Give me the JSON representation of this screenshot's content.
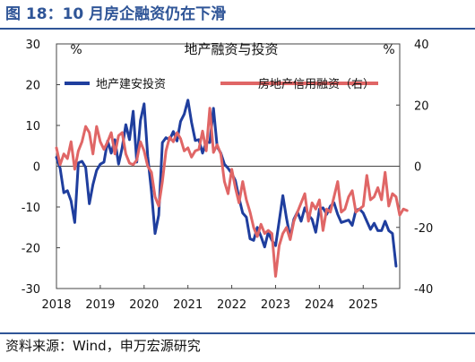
{
  "figure": {
    "title": "图 18：10 月房企融资仍在下滑",
    "source": "资料来源：Wind，申万宏源研究"
  },
  "colors": {
    "header": "#2f5597",
    "series_left": "#1f3e9e",
    "series_right": "#e06666"
  },
  "chart_data": {
    "type": "line",
    "title": "地产融资与投资",
    "left_axis": {
      "unit": "%",
      "ylim": [
        -30,
        30
      ],
      "ticks": [
        "30",
        "20",
        "10",
        "0",
        "-10",
        "-20",
        "-30"
      ]
    },
    "right_axis": {
      "unit": "%",
      "ylim": [
        -40,
        40
      ],
      "ticks": [
        "40",
        "20",
        "0",
        "-20",
        "-40"
      ]
    },
    "x_axis": {
      "xlim": [
        2018.0,
        2025.833
      ],
      "ticks": [
        "2018",
        "2019",
        "2020",
        "2021",
        "2022",
        "2023",
        "2024",
        "2025"
      ]
    },
    "grid": false,
    "legend_position": "top",
    "series": [
      {
        "name": "地产建安投资",
        "axis": "left",
        "color": "#1f3e9e",
        "points": [
          [
            2018.0,
            2.2
          ],
          [
            2018.083,
            -0.5
          ],
          [
            2018.167,
            -6.5
          ],
          [
            2018.25,
            -6.0
          ],
          [
            2018.333,
            -8.5
          ],
          [
            2018.417,
            -13.8
          ],
          [
            2018.5,
            0.8
          ],
          [
            2018.583,
            1.2
          ],
          [
            2018.667,
            -0.3
          ],
          [
            2018.75,
            -9.2
          ],
          [
            2018.833,
            -4.5
          ],
          [
            2018.917,
            -1.0
          ],
          [
            2019.0,
            0.5
          ],
          [
            2019.083,
            1.0
          ],
          [
            2019.167,
            6.2
          ],
          [
            2019.25,
            3.2
          ],
          [
            2019.333,
            6.5
          ],
          [
            2019.417,
            0.5
          ],
          [
            2019.5,
            4.5
          ],
          [
            2019.583,
            10.2
          ],
          [
            2019.667,
            6.5
          ],
          [
            2019.75,
            13.5
          ],
          [
            2019.833,
            1.0
          ],
          [
            2019.917,
            11.2
          ],
          [
            2020.0,
            15.3
          ],
          [
            2020.083,
            2.5
          ],
          [
            2020.167,
            -6.2
          ],
          [
            2020.25,
            -16.5
          ],
          [
            2020.333,
            -12.0
          ],
          [
            2020.417,
            5.8
          ],
          [
            2020.5,
            7.0
          ],
          [
            2020.583,
            6.5
          ],
          [
            2020.667,
            8.5
          ],
          [
            2020.75,
            6.2
          ],
          [
            2020.833,
            11.0
          ],
          [
            2020.917,
            12.8
          ],
          [
            2021.0,
            16.2
          ],
          [
            2021.083,
            10.8
          ],
          [
            2021.167,
            6.3
          ],
          [
            2021.25,
            6.5
          ],
          [
            2021.333,
            3.2
          ],
          [
            2021.417,
            6.0
          ],
          [
            2021.5,
            5.8
          ],
          [
            2021.583,
            14.2
          ],
          [
            2021.667,
            4.8
          ],
          [
            2021.75,
            3.2
          ],
          [
            2021.833,
            0.5
          ],
          [
            2021.917,
            -0.5
          ],
          [
            2022.0,
            -1.8
          ],
          [
            2022.083,
            -3.5
          ],
          [
            2022.167,
            -7.8
          ],
          [
            2022.25,
            -11.5
          ],
          [
            2022.333,
            -12.5
          ],
          [
            2022.417,
            -17.8
          ],
          [
            2022.5,
            -18.2
          ],
          [
            2022.583,
            -15.0
          ],
          [
            2022.667,
            -17.2
          ],
          [
            2022.75,
            -19.8
          ],
          [
            2022.833,
            -16.2
          ],
          [
            2022.917,
            -18.2
          ],
          [
            2023.0,
            -19.5
          ],
          [
            2023.083,
            -13.5
          ],
          [
            2023.167,
            -7.2
          ],
          [
            2023.25,
            -12.8
          ],
          [
            2023.333,
            -17.5
          ],
          [
            2023.417,
            -13.0
          ],
          [
            2023.5,
            -11.2
          ],
          [
            2023.583,
            -13.5
          ],
          [
            2023.667,
            -10.2
          ],
          [
            2023.75,
            -12.0
          ],
          [
            2023.833,
            -13.0
          ],
          [
            2023.917,
            -16.2
          ],
          [
            2024.0,
            -10.5
          ],
          [
            2024.083,
            -10.2
          ],
          [
            2024.167,
            -11.8
          ],
          [
            2024.25,
            -9.8
          ],
          [
            2024.333,
            -9.0
          ],
          [
            2024.417,
            -11.8
          ],
          [
            2024.5,
            -13.8
          ],
          [
            2024.583,
            -13.5
          ],
          [
            2024.667,
            -13.2
          ],
          [
            2024.75,
            -14.5
          ],
          [
            2024.833,
            -10.8
          ],
          [
            2024.917,
            -10.5
          ],
          [
            2025.0,
            -11.5
          ],
          [
            2025.083,
            -13.5
          ],
          [
            2025.167,
            -15.5
          ],
          [
            2025.25,
            -14.0
          ],
          [
            2025.333,
            -15.8
          ],
          [
            2025.417,
            -15.8
          ],
          [
            2025.5,
            -13.5
          ],
          [
            2025.583,
            -15.8
          ],
          [
            2025.667,
            -16.5
          ],
          [
            2025.75,
            -24.5
          ]
        ]
      },
      {
        "name": "房地产信用融资（右）",
        "axis": "right",
        "color": "#e06666",
        "points": [
          [
            2018.0,
            6.0
          ],
          [
            2018.083,
            0.5
          ],
          [
            2018.167,
            4.0
          ],
          [
            2018.25,
            2.5
          ],
          [
            2018.333,
            8.0
          ],
          [
            2018.417,
            -1.0
          ],
          [
            2018.5,
            5.0
          ],
          [
            2018.583,
            8.0
          ],
          [
            2018.667,
            13.0
          ],
          [
            2018.75,
            11.0
          ],
          [
            2018.833,
            4.0
          ],
          [
            2018.917,
            13.0
          ],
          [
            2019.0,
            8.0
          ],
          [
            2019.083,
            5.5
          ],
          [
            2019.167,
            8.0
          ],
          [
            2019.25,
            11.0
          ],
          [
            2019.333,
            4.0
          ],
          [
            2019.417,
            10.0
          ],
          [
            2019.5,
            11.0
          ],
          [
            2019.583,
            4.0
          ],
          [
            2019.667,
            1.0
          ],
          [
            2019.75,
            0.5
          ],
          [
            2019.833,
            2.0
          ],
          [
            2019.917,
            8.0
          ],
          [
            2020.0,
            5.0
          ],
          [
            2020.083,
            0.0
          ],
          [
            2020.167,
            -2.0
          ],
          [
            2020.25,
            -10.0
          ],
          [
            2020.333,
            -13.0
          ],
          [
            2020.417,
            -5.0
          ],
          [
            2020.5,
            5.0
          ],
          [
            2020.583,
            9.5
          ],
          [
            2020.667,
            8.0
          ],
          [
            2020.75,
            11.0
          ],
          [
            2020.833,
            9.0
          ],
          [
            2020.917,
            5.0
          ],
          [
            2021.0,
            6.0
          ],
          [
            2021.083,
            3.0
          ],
          [
            2021.167,
            5.0
          ],
          [
            2021.25,
            5.5
          ],
          [
            2021.333,
            11.5
          ],
          [
            2021.417,
            5.0
          ],
          [
            2021.5,
            19.0
          ],
          [
            2021.583,
            4.5
          ],
          [
            2021.667,
            7.0
          ],
          [
            2021.75,
            4.0
          ],
          [
            2021.833,
            -5.0
          ],
          [
            2021.917,
            -9.0
          ],
          [
            2022.0,
            -1.0
          ],
          [
            2022.083,
            -7.0
          ],
          [
            2022.167,
            -12.0
          ],
          [
            2022.25,
            -5.0
          ],
          [
            2022.333,
            -11.0
          ],
          [
            2022.417,
            -15.0
          ],
          [
            2022.5,
            -20.0
          ],
          [
            2022.583,
            -23.0
          ],
          [
            2022.667,
            -19.0
          ],
          [
            2022.75,
            -22.0
          ],
          [
            2022.833,
            -21.0
          ],
          [
            2022.917,
            -22.0
          ],
          [
            2023.0,
            -36.0
          ],
          [
            2023.083,
            -26.0
          ],
          [
            2023.167,
            -22.0
          ],
          [
            2023.25,
            -20.0
          ],
          [
            2023.333,
            -24.0
          ],
          [
            2023.417,
            -18.0
          ],
          [
            2023.5,
            -15.0
          ],
          [
            2023.583,
            -12.0
          ],
          [
            2023.667,
            -9.0
          ],
          [
            2023.75,
            -18.0
          ],
          [
            2023.833,
            -12.0
          ],
          [
            2023.917,
            -14.0
          ],
          [
            2024.0,
            -11.0
          ],
          [
            2024.083,
            -21.0
          ],
          [
            2024.167,
            -14.0
          ],
          [
            2024.25,
            -15.0
          ],
          [
            2024.333,
            -10.0
          ],
          [
            2024.417,
            -5.0
          ],
          [
            2024.5,
            -15.0
          ],
          [
            2024.583,
            -14.0
          ],
          [
            2024.667,
            -10.0
          ],
          [
            2024.75,
            -8.0
          ],
          [
            2024.833,
            -15.0
          ],
          [
            2024.917,
            -14.0
          ],
          [
            2025.0,
            -13.0
          ],
          [
            2025.083,
            -3.0
          ],
          [
            2025.167,
            -11.0
          ],
          [
            2025.25,
            -10.0
          ],
          [
            2025.333,
            -7.0
          ],
          [
            2025.417,
            -11.0
          ],
          [
            2025.5,
            -2.0
          ],
          [
            2025.583,
            -13.0
          ],
          [
            2025.667,
            -9.0
          ],
          [
            2025.75,
            -10.0
          ],
          [
            2025.833,
            -16.0
          ],
          [
            2025.917,
            -14.0
          ],
          [
            2026.0,
            -14.5
          ]
        ]
      }
    ]
  }
}
